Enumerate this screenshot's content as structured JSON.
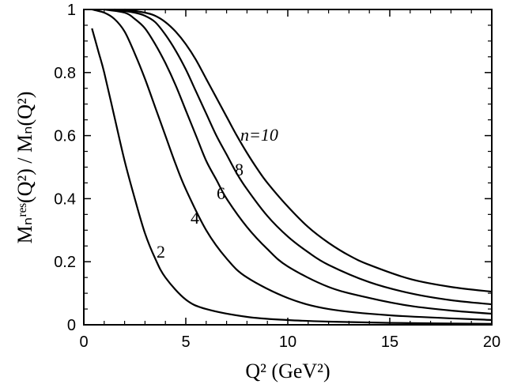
{
  "chart_data": {
    "type": "line",
    "xlabel": "Q² (GeV²)",
    "ylabel": "Mₙʳᵉˢ(Q²) / Mₙ(Q²)",
    "xlim": [
      0,
      20
    ],
    "ylim": [
      0,
      1
    ],
    "xticks": [
      0,
      5,
      10,
      15,
      20
    ],
    "yticks": [
      0,
      0.2,
      0.4,
      0.6,
      0.8,
      1
    ],
    "xtick_labels": [
      "0",
      "5",
      "10",
      "15",
      "20"
    ],
    "ytick_labels": [
      "0",
      "0.2",
      "0.4",
      "0.6",
      "0.8",
      "1"
    ],
    "grid": false,
    "series": [
      {
        "name": "2",
        "label_text": "2",
        "x": [
          0.4,
          0.7,
          1.0,
          1.5,
          2.0,
          2.5,
          3.0,
          3.5,
          4.0,
          5.0,
          6.0,
          8.0,
          10.0,
          12.0,
          15.0,
          20.0
        ],
        "y": [
          0.94,
          0.87,
          0.8,
          0.66,
          0.52,
          0.4,
          0.29,
          0.21,
          0.15,
          0.08,
          0.05,
          0.025,
          0.015,
          0.01,
          0.006,
          0.003
        ]
      },
      {
        "name": "4",
        "label_text": "4",
        "x": [
          0.4,
          1.0,
          1.5,
          2.0,
          2.5,
          3.0,
          3.5,
          4.0,
          4.5,
          5.0,
          6.0,
          7.0,
          8.0,
          10.0,
          12.0,
          15.0,
          20.0
        ],
        "y": [
          1.0,
          0.99,
          0.97,
          0.93,
          0.86,
          0.78,
          0.69,
          0.6,
          0.51,
          0.43,
          0.3,
          0.21,
          0.15,
          0.085,
          0.05,
          0.03,
          0.015
        ]
      },
      {
        "name": "6",
        "label_text": "6",
        "x": [
          1.0,
          2.0,
          2.5,
          3.0,
          3.5,
          4.0,
          4.5,
          5.0,
          5.5,
          6.0,
          6.5,
          7.0,
          8.0,
          9.0,
          10.0,
          12.0,
          14.0,
          16.0,
          18.0,
          20.0
        ],
        "y": [
          1.0,
          0.99,
          0.97,
          0.94,
          0.89,
          0.83,
          0.76,
          0.68,
          0.6,
          0.52,
          0.46,
          0.4,
          0.31,
          0.24,
          0.185,
          0.12,
          0.085,
          0.06,
          0.045,
          0.035
        ]
      },
      {
        "name": "8",
        "label_text": "8",
        "x": [
          1.5,
          2.5,
          3.0,
          3.5,
          4.0,
          4.5,
          5.0,
          5.5,
          6.0,
          6.5,
          7.0,
          7.5,
          8.0,
          9.0,
          10.0,
          11.0,
          12.0,
          14.0,
          16.0,
          18.0,
          20.0
        ],
        "y": [
          1.0,
          0.99,
          0.98,
          0.96,
          0.92,
          0.87,
          0.81,
          0.74,
          0.67,
          0.6,
          0.54,
          0.48,
          0.43,
          0.345,
          0.28,
          0.23,
          0.19,
          0.135,
          0.1,
          0.078,
          0.065
        ]
      },
      {
        "name": "10",
        "label_text": "n=10",
        "x": [
          2.0,
          3.0,
          3.5,
          4.0,
          4.5,
          5.0,
          5.5,
          6.0,
          6.5,
          7.0,
          7.5,
          8.0,
          8.5,
          9.0,
          10.0,
          11.0,
          12.0,
          13.0,
          14.0,
          16.0,
          18.0,
          20.0
        ],
        "y": [
          1.0,
          0.99,
          0.98,
          0.96,
          0.93,
          0.89,
          0.84,
          0.78,
          0.72,
          0.66,
          0.6,
          0.545,
          0.495,
          0.45,
          0.375,
          0.31,
          0.26,
          0.22,
          0.19,
          0.145,
          0.12,
          0.105
        ]
      }
    ]
  }
}
